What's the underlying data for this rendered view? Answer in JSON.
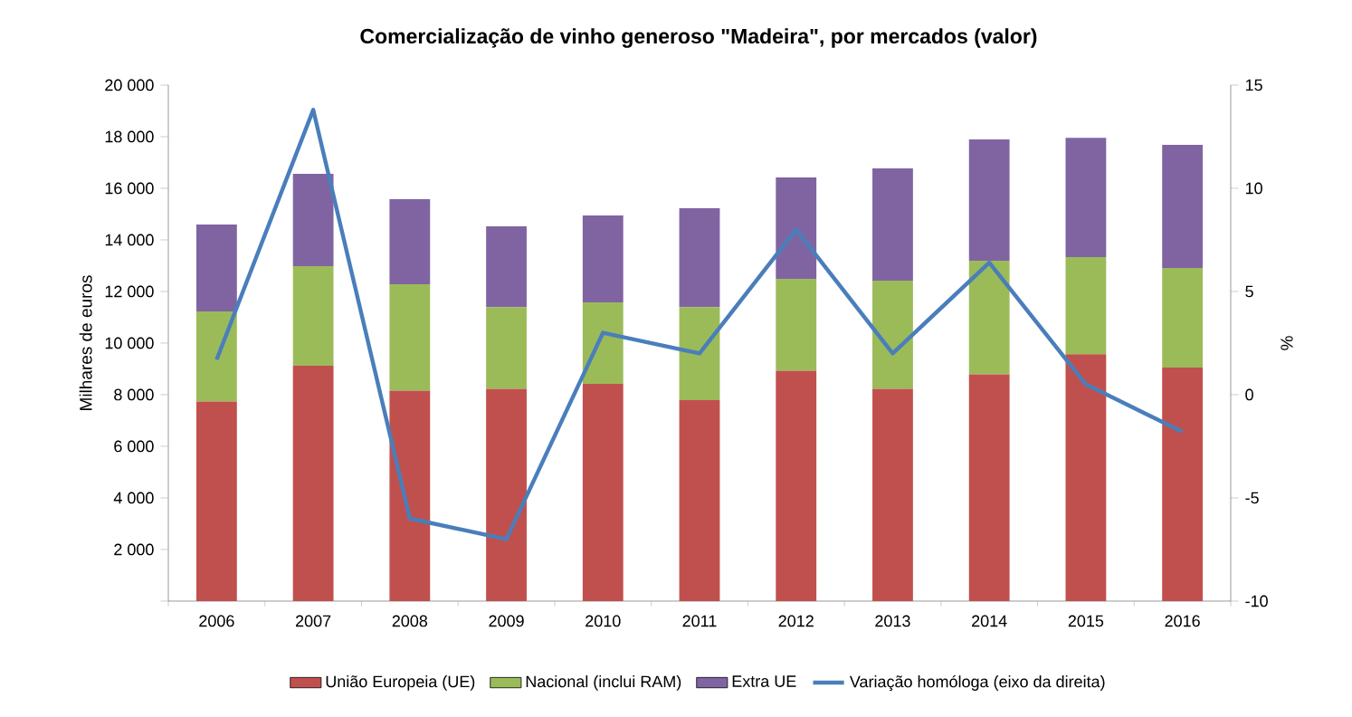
{
  "chart_data": {
    "type": "bar",
    "stacked": true,
    "title": "Comercialização  de vinho generoso \"Madeira\", por mercados  (valor)",
    "ylabel": "Milhares de euros",
    "y2label": "%",
    "categories": [
      "2006",
      "2007",
      "2008",
      "2009",
      "2010",
      "2011",
      "2012",
      "2013",
      "2014",
      "2015",
      "2016"
    ],
    "series": [
      {
        "name": "União Europeia (UE)",
        "color": "#c0504d",
        "values": [
          7740,
          9120,
          8160,
          8230,
          8420,
          7790,
          8930,
          8230,
          8790,
          9570,
          9050
        ]
      },
      {
        "name": "Nacional (inclui RAM)",
        "color": "#9bbb59",
        "values": [
          3490,
          3860,
          4120,
          3160,
          3160,
          3600,
          3560,
          4190,
          4400,
          3760,
          3860
        ]
      },
      {
        "name": "Extra UE",
        "color": "#8064a2",
        "values": [
          3370,
          3580,
          3300,
          3140,
          3370,
          3840,
          3930,
          4350,
          4700,
          4630,
          4770
        ]
      },
      {
        "name": "Variação homóloga (eixo da direita)",
        "type": "line",
        "axis": "y2",
        "color": "#4a7ebb",
        "values": [
          1.7,
          13.8,
          -6.0,
          -7.0,
          3.0,
          2.0,
          8.0,
          2.0,
          6.4,
          0.5,
          -1.8
        ]
      }
    ],
    "ylim": [
      0,
      20000
    ],
    "yticks": [
      {
        "value": 0,
        "label": null
      },
      {
        "value": 2000,
        "label": "2 000"
      },
      {
        "value": 4000,
        "label": "4 000"
      },
      {
        "value": 6000,
        "label": "6 000"
      },
      {
        "value": 8000,
        "label": "8 000"
      },
      {
        "value": 10000,
        "label": "10 000"
      },
      {
        "value": 12000,
        "label": "12 000"
      },
      {
        "value": 14000,
        "label": "14 000"
      },
      {
        "value": 16000,
        "label": "16 000"
      },
      {
        "value": 18000,
        "label": "18 000"
      },
      {
        "value": 20000,
        "label": "20 000"
      }
    ],
    "y2lim": [
      -10,
      15
    ],
    "y2ticks": [
      -10,
      -5,
      0,
      5,
      10,
      15
    ],
    "legend": "bottom",
    "line_style": "solid"
  }
}
